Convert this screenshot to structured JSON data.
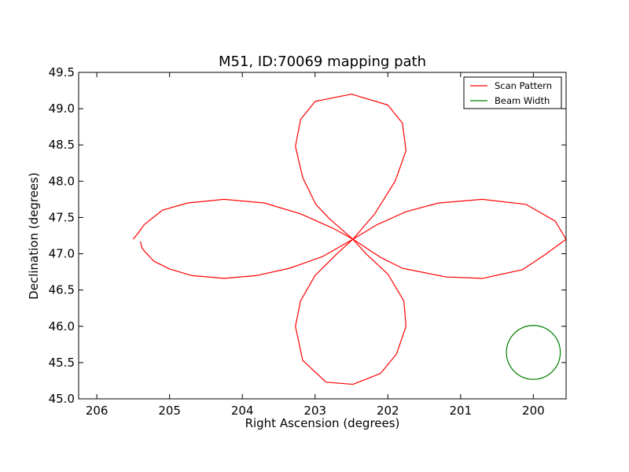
{
  "chart_data": {
    "type": "line",
    "title": "M51, ID:70069 mapping path",
    "xlabel": "Right Ascension (degrees)",
    "ylabel": "Declination (degrees)",
    "xlim": [
      206.25,
      199.55
    ],
    "ylim": [
      45.0,
      49.5
    ],
    "x_ticks": [
      "206",
      "205",
      "204",
      "203",
      "202",
      "201",
      "200"
    ],
    "y_ticks": [
      "45.0",
      "45.5",
      "46.0",
      "46.5",
      "47.0",
      "47.5",
      "48.0",
      "48.5",
      "49.0",
      "49.5"
    ],
    "legend_position": "top-right",
    "series": [
      {
        "name": "Scan Pattern",
        "color": "#ff0000",
        "points": [
          [
            205.4,
            47.17
          ],
          [
            205.38,
            47.08
          ],
          [
            205.33,
            47.02
          ],
          [
            205.22,
            46.9
          ],
          [
            205.0,
            46.79
          ],
          [
            204.7,
            46.7
          ],
          [
            204.25,
            46.66
          ],
          [
            203.8,
            46.7
          ],
          [
            203.35,
            46.8
          ],
          [
            202.9,
            46.96
          ],
          [
            202.48,
            47.2
          ],
          [
            202.8,
            47.48
          ],
          [
            202.99,
            47.68
          ],
          [
            203.17,
            48.05
          ],
          [
            203.27,
            48.48
          ],
          [
            203.2,
            48.85
          ],
          [
            203.0,
            49.1
          ],
          [
            202.5,
            49.2
          ],
          [
            202.0,
            49.05
          ],
          [
            201.8,
            48.8
          ],
          [
            201.75,
            48.42
          ],
          [
            201.9,
            48.0
          ],
          [
            202.18,
            47.55
          ],
          [
            202.48,
            47.2
          ],
          [
            202.1,
            46.95
          ],
          [
            201.8,
            46.8
          ],
          [
            201.2,
            46.68
          ],
          [
            200.7,
            46.66
          ],
          [
            200.15,
            46.78
          ],
          [
            199.85,
            46.98
          ],
          [
            199.55,
            47.2
          ],
          [
            199.7,
            47.45
          ],
          [
            200.1,
            47.68
          ],
          [
            200.7,
            47.75
          ],
          [
            201.3,
            47.7
          ],
          [
            201.75,
            47.58
          ],
          [
            202.15,
            47.4
          ],
          [
            202.48,
            47.2
          ],
          [
            202.3,
            47.0
          ],
          [
            202.0,
            46.72
          ],
          [
            201.78,
            46.35
          ],
          [
            201.75,
            46.0
          ],
          [
            201.88,
            45.62
          ],
          [
            202.1,
            45.35
          ],
          [
            202.48,
            45.2
          ],
          [
            202.85,
            45.23
          ],
          [
            203.17,
            45.53
          ],
          [
            203.27,
            46.0
          ],
          [
            203.2,
            46.35
          ],
          [
            203.0,
            46.7
          ],
          [
            202.7,
            47.0
          ],
          [
            202.48,
            47.2
          ],
          [
            202.75,
            47.35
          ],
          [
            203.2,
            47.55
          ],
          [
            203.7,
            47.7
          ],
          [
            204.25,
            47.75
          ],
          [
            204.75,
            47.7
          ],
          [
            205.1,
            47.6
          ],
          [
            205.35,
            47.4
          ],
          [
            205.42,
            47.3
          ],
          [
            205.5,
            47.2
          ]
        ]
      },
      {
        "name": "Beam Width",
        "color": "#008000",
        "center": [
          200.0,
          45.64
        ],
        "radius_deg": 0.37
      }
    ]
  }
}
